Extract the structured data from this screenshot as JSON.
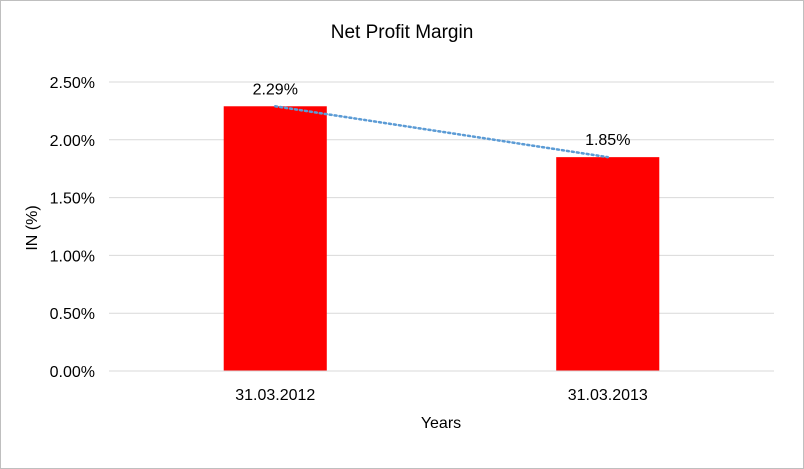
{
  "chart_data": {
    "type": "bar",
    "title": "Net Profit Margin",
    "xlabel": "Years",
    "ylabel": "IN (%)",
    "categories": [
      "31.03.2012",
      "31.03.2013"
    ],
    "values": [
      2.29,
      1.85
    ],
    "data_labels": [
      "2.29%",
      "1.85%"
    ],
    "ylim": [
      0,
      2.5
    ],
    "y_ticks": [
      0,
      0.5,
      1.0,
      1.5,
      2.0,
      2.5
    ],
    "y_tick_labels": [
      "0.00%",
      "0.50%",
      "1.00%",
      "1.50%",
      "2.00%",
      "2.50%"
    ],
    "bar_color": "#ff0000",
    "trendline": {
      "type": "linear",
      "color": "#5b9bd5",
      "style": "dotted"
    },
    "grid": true,
    "legend": "none"
  }
}
